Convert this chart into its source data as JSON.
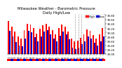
{
  "title": "Milwaukee Weather - Barometric Pressure",
  "subtitle": "Daily High/Low",
  "legend_high": "High",
  "legend_low": "Low",
  "high_color": "#ff0000",
  "low_color": "#0000cc",
  "background_color": "#ffffff",
  "bottom_bar_colors": [
    "#ff0000",
    "#0000cc"
  ],
  "ylim_min": 29.0,
  "ylim_max": 30.85,
  "ytick_min": 29.0,
  "ytick_step": 0.2,
  "ytick_count": 10,
  "bar_width": 0.42,
  "days": [
    1,
    2,
    3,
    4,
    5,
    6,
    7,
    8,
    9,
    10,
    11,
    12,
    13,
    14,
    15,
    16,
    17,
    18,
    19,
    20,
    21,
    22,
    23,
    24,
    25,
    26,
    27,
    28,
    29,
    30,
    31
  ],
  "highs": [
    30.52,
    30.28,
    30.05,
    29.8,
    29.7,
    30.1,
    30.42,
    30.38,
    30.2,
    29.95,
    30.18,
    30.35,
    30.42,
    30.28,
    30.12,
    29.92,
    30.22,
    30.38,
    30.28,
    30.05,
    29.72,
    29.58,
    29.62,
    29.75,
    29.92,
    30.15,
    30.08,
    29.88,
    29.72,
    29.92,
    30.22
  ],
  "lows": [
    30.08,
    29.82,
    29.55,
    29.4,
    29.35,
    29.72,
    30.08,
    30.02,
    29.78,
    29.58,
    29.82,
    30.05,
    30.12,
    29.92,
    29.72,
    29.58,
    29.85,
    30.05,
    29.92,
    29.68,
    29.3,
    29.22,
    29.28,
    29.45,
    29.58,
    29.82,
    29.72,
    29.52,
    29.38,
    29.58,
    29.82
  ],
  "dashed_line_days": [
    22,
    23,
    24
  ],
  "title_fontsize": 3.8,
  "tick_fontsize": 2.8,
  "legend_fontsize": 2.8
}
